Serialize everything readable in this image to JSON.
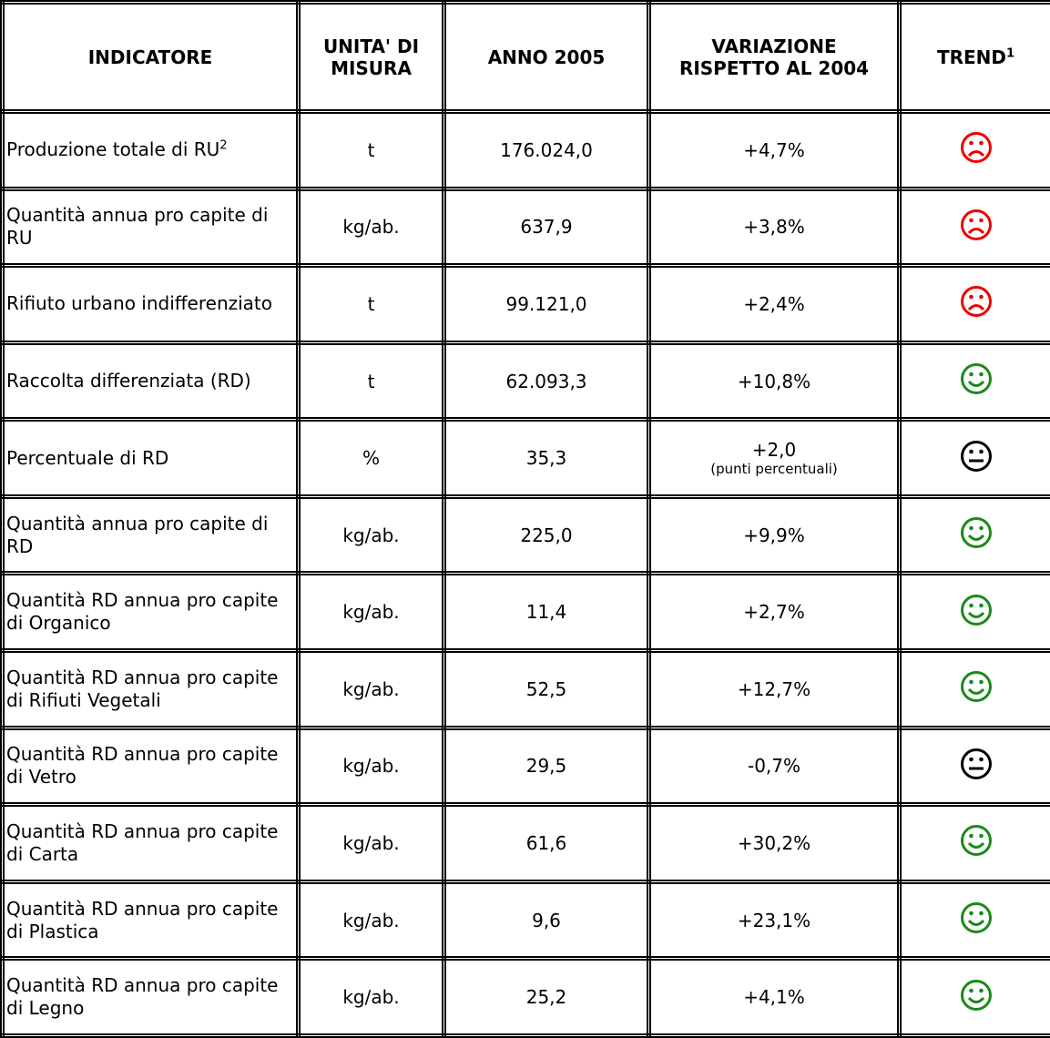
{
  "table": {
    "header": [
      "INDICATORE",
      "UNITA' DI MISURA",
      "ANNO 2005",
      "VARIAZIONE RISPETTO AL 2004",
      {
        "text": "TREND",
        "sup": "1"
      }
    ],
    "rows": [
      [
        {
          "text": "Produzione totale di RU",
          "sup": "2"
        },
        "t",
        "176.024,0",
        "+4,7%"
      ],
      [
        "Quantità annua pro capite di RU",
        "kg/ab.",
        "637,9",
        "+3,8%"
      ],
      [
        "Rifiuto urbano indifferenziato",
        "t",
        "99.121,0",
        "+2,4%"
      ],
      [
        "Raccolta differenziata (RD)",
        "t",
        "62.093,3",
        "+10,8%"
      ],
      [
        "Percentuale di RD",
        "%",
        "35,3",
        {
          "text": "+2,0",
          "note": "(punti percentuali)"
        }
      ],
      [
        "Quantità annua pro capite di RD",
        "kg/ab.",
        "225,0",
        "+9,9%"
      ],
      [
        "Quantità RD annua pro capite di Organico",
        "kg/ab.",
        "11,4",
        "+2,7%"
      ],
      [
        "Quantità RD annua pro capite di Rifiuti Vegetali",
        "kg/ab.",
        "52,5",
        "+12,7%"
      ],
      [
        "Quantità RD annua pro capite di Vetro",
        "kg/ab.",
        "29,5",
        "-0,7%"
      ],
      [
        "Quantità RD annua pro capite di Carta",
        "kg/ab.",
        "61,6",
        "+30,2%"
      ],
      [
        "Quantità RD annua pro capite di Plastica",
        "kg/ab.",
        "9,6",
        "+23,1%"
      ],
      [
        "Quantità RD annua pro capite di Legno",
        "kg/ab.",
        "25,2",
        "+4,1%"
      ]
    ]
  }
}
